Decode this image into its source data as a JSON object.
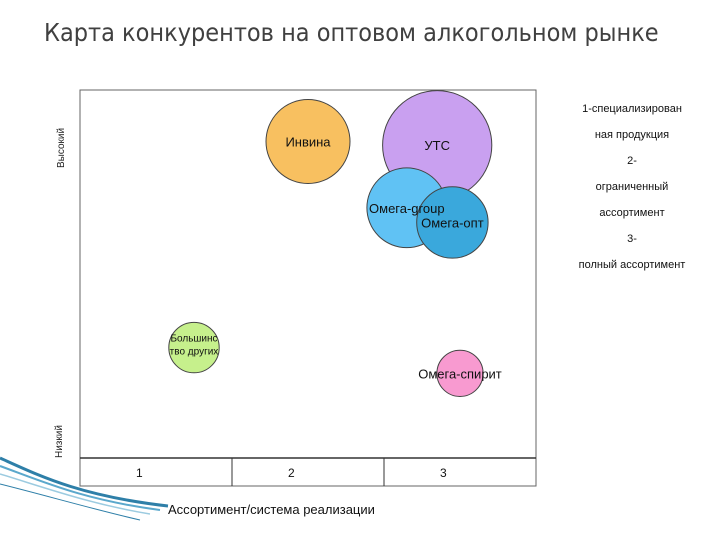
{
  "title": "Карта конкурентов на оптовом алкогольном рынке",
  "legend": [
    "1-специализирован",
    "ная продукция",
    "2-",
    "ограниченный",
    "ассортимент",
    "3-",
    "полный ассортимент"
  ],
  "chart_data": {
    "type": "scatter",
    "title": "Карта конкурентов на оптовом алкогольном рынке",
    "xlabel": "Ассортимент/система реализации",
    "ylabel_top": "Высокий",
    "ylabel_bottom": "Низкий",
    "x_ticks": [
      "1",
      "2",
      "3"
    ],
    "xlim": [
      0.5,
      3.5
    ],
    "ylim": [
      0,
      1
    ],
    "points": [
      {
        "label": "Инвина",
        "x": 2.0,
        "y": 0.86,
        "size": 1.0,
        "color": "#f8c060"
      },
      {
        "label": "УТС",
        "x": 2.85,
        "y": 0.85,
        "size": 1.3,
        "color": "#c9a0f0"
      },
      {
        "label": "Омега-group",
        "x": 2.65,
        "y": 0.68,
        "size": 0.95,
        "color": "#60c2f4"
      },
      {
        "label": "Омега-опт",
        "x": 2.95,
        "y": 0.64,
        "size": 0.85,
        "color": "#3aa8dc"
      },
      {
        "label": "Большинс тво других",
        "x": 1.25,
        "y": 0.3,
        "size": 0.6,
        "color": "#c6f08c"
      },
      {
        "label": "Омега-спирит",
        "x": 3.0,
        "y": 0.23,
        "size": 0.55,
        "color": "#f89ad0"
      }
    ]
  }
}
